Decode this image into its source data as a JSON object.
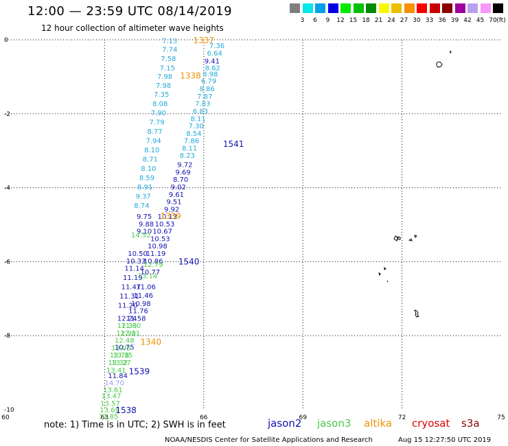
{
  "header": {
    "title": "12:00 — 23:59 UTC 08/14/2019",
    "subtitle": "12 hour collection of altimeter wave heights"
  },
  "legend": {
    "unit": "(ft)",
    "entries": [
      {
        "label": "3",
        "color": "#7f7f7f"
      },
      {
        "label": "6",
        "color": "#00e8e8"
      },
      {
        "label": "9",
        "color": "#00a0e8"
      },
      {
        "label": "12",
        "color": "#0000e0"
      },
      {
        "label": "15",
        "color": "#00e800"
      },
      {
        "label": "18",
        "color": "#00c000"
      },
      {
        "label": "21",
        "color": "#008c00"
      },
      {
        "label": "24",
        "color": "#f8f800"
      },
      {
        "label": "27",
        "color": "#e8c000"
      },
      {
        "label": "30",
        "color": "#f89000"
      },
      {
        "label": "33",
        "color": "#f80000"
      },
      {
        "label": "36",
        "color": "#c80000"
      },
      {
        "label": "39",
        "color": "#880000"
      },
      {
        "label": "42",
        "color": "#a000a0"
      },
      {
        "label": "45",
        "color": "#b8a0f0"
      },
      {
        "label": "70",
        "color": "#f898f8"
      },
      {
        "label": "(ft)",
        "color": "#000000"
      }
    ]
  },
  "axes": {
    "lon": {
      "min": 60,
      "max": 75,
      "ticks": [
        "60",
        "63",
        "66",
        "69",
        "72",
        "75"
      ],
      "tick_values": [
        60,
        63,
        66,
        69,
        72,
        75
      ]
    },
    "lat": {
      "min": -10,
      "max": 0,
      "ticks": [
        "0",
        "-2",
        "-4",
        "-6",
        "-8",
        "-10"
      ],
      "tick_values": [
        0,
        -2,
        -4,
        -6,
        -8,
        -10
      ]
    }
  },
  "colors": {
    "jason2": "#1010b0",
    "jason2_light": "#20a8d8",
    "jason3": "#48c848",
    "altika": "#f09000",
    "cryosat": "#e00000",
    "s3a": "#800000",
    "lavender": "#a098f0"
  },
  "tracks": [
    {
      "sat": "jason2_light",
      "points": [
        {
          "lon": 64.97,
          "lat": -0.02,
          "v": "7.13"
        },
        {
          "lon": 64.97,
          "lat": -0.25,
          "v": "7.74"
        },
        {
          "lon": 64.93,
          "lat": -0.5,
          "v": "7.58"
        },
        {
          "lon": 64.9,
          "lat": -0.75,
          "v": "7.15"
        },
        {
          "lon": 64.82,
          "lat": -0.98,
          "v": "7.98"
        },
        {
          "lon": 64.78,
          "lat": -1.22,
          "v": "7.98"
        },
        {
          "lon": 64.72,
          "lat": -1.47,
          "v": "7.35"
        },
        {
          "lon": 64.68,
          "lat": -1.72,
          "v": "8.08"
        },
        {
          "lon": 64.63,
          "lat": -1.97,
          "v": "7.90"
        },
        {
          "lon": 64.58,
          "lat": -2.22,
          "v": "7.79"
        },
        {
          "lon": 64.52,
          "lat": -2.47,
          "v": "8.77"
        },
        {
          "lon": 64.48,
          "lat": -2.72,
          "v": "7.94"
        },
        {
          "lon": 64.43,
          "lat": -2.97,
          "v": "8.10"
        },
        {
          "lon": 64.38,
          "lat": -3.22,
          "v": "8.71"
        },
        {
          "lon": 64.33,
          "lat": -3.47,
          "v": "8.10"
        },
        {
          "lon": 64.28,
          "lat": -3.72,
          "v": "8.59"
        },
        {
          "lon": 64.22,
          "lat": -3.97,
          "v": "8.91"
        },
        {
          "lon": 64.17,
          "lat": -4.22,
          "v": "9.37"
        },
        {
          "lon": 64.12,
          "lat": -4.47,
          "v": "8.74"
        }
      ]
    },
    {
      "sat": "jason2_light",
      "points": [
        {
          "lon": 66.4,
          "lat": -0.15,
          "v": "7.36"
        },
        {
          "lon": 66.33,
          "lat": -0.35,
          "v": "6.64"
        },
        {
          "lon": 66.27,
          "lat": -0.75,
          "v": "8.62"
        },
        {
          "lon": 66.2,
          "lat": -0.92,
          "v": "8.98"
        },
        {
          "lon": 66.15,
          "lat": -1.1,
          "v": "6.79"
        },
        {
          "lon": 66.1,
          "lat": -1.32,
          "v": "8.86"
        },
        {
          "lon": 66.03,
          "lat": -1.52,
          "v": "7.87"
        },
        {
          "lon": 65.97,
          "lat": -1.72,
          "v": "7.83"
        },
        {
          "lon": 65.9,
          "lat": -1.92,
          "v": "6.83"
        },
        {
          "lon": 65.83,
          "lat": -2.12,
          "v": "8.11"
        },
        {
          "lon": 65.77,
          "lat": -2.32,
          "v": "7.30"
        },
        {
          "lon": 65.7,
          "lat": -2.52,
          "v": "8.54"
        },
        {
          "lon": 65.63,
          "lat": -2.72,
          "v": "7.86"
        },
        {
          "lon": 65.57,
          "lat": -2.92,
          "v": "8.11"
        },
        {
          "lon": 65.5,
          "lat": -3.12,
          "v": "8.23"
        }
      ]
    },
    {
      "sat": "jason2",
      "points": [
        {
          "lon": 66.25,
          "lat": -0.57,
          "v": "9.41"
        },
        {
          "lon": 65.43,
          "lat": -3.37,
          "v": "9.72"
        },
        {
          "lon": 65.37,
          "lat": -3.57,
          "v": "9.69"
        },
        {
          "lon": 65.3,
          "lat": -3.77,
          "v": "8.70"
        },
        {
          "lon": 65.23,
          "lat": -3.97,
          "v": "9.02"
        },
        {
          "lon": 65.17,
          "lat": -4.17,
          "v": "9.61"
        },
        {
          "lon": 65.1,
          "lat": -4.37,
          "v": "9.51"
        },
        {
          "lon": 65.03,
          "lat": -4.57,
          "v": "9.92"
        },
        {
          "lon": 64.2,
          "lat": -4.77,
          "v": "9.75"
        },
        {
          "lon": 64.9,
          "lat": -4.77,
          "v": "10.13"
        },
        {
          "lon": 64.82,
          "lat": -4.97,
          "v": "10.53"
        },
        {
          "lon": 64.26,
          "lat": -4.97,
          "v": "9.88"
        },
        {
          "lon": 64.75,
          "lat": -5.17,
          "v": "10.67"
        },
        {
          "lon": 64.2,
          "lat": -5.17,
          "v": "9.10"
        },
        {
          "lon": 64.68,
          "lat": -5.37,
          "v": "10.53"
        },
        {
          "lon": 64.6,
          "lat": -5.57,
          "v": "10.98"
        },
        {
          "lon": 64.55,
          "lat": -5.77,
          "v": "11.19"
        },
        {
          "lon": 64.0,
          "lat": -5.77,
          "v": "10.50"
        },
        {
          "lon": 64.47,
          "lat": -5.97,
          "v": "10.86"
        },
        {
          "lon": 63.95,
          "lat": -5.97,
          "v": "10.33"
        },
        {
          "lon": 64.38,
          "lat": -6.27,
          "v": "10.77"
        },
        {
          "lon": 63.9,
          "lat": -6.17,
          "v": "11.14"
        },
        {
          "lon": 63.85,
          "lat": -6.42,
          "v": "11.19"
        },
        {
          "lon": 64.25,
          "lat": -6.67,
          "v": "11.06"
        },
        {
          "lon": 63.8,
          "lat": -6.67,
          "v": "11.47"
        },
        {
          "lon": 64.17,
          "lat": -6.9,
          "v": "11.46"
        },
        {
          "lon": 63.75,
          "lat": -6.92,
          "v": "11.31"
        },
        {
          "lon": 64.1,
          "lat": -7.12,
          "v": "10.98"
        },
        {
          "lon": 63.7,
          "lat": -7.17,
          "v": "11.20"
        },
        {
          "lon": 64.02,
          "lat": -7.32,
          "v": "11.76"
        },
        {
          "lon": 63.95,
          "lat": -7.52,
          "v": "11.58"
        },
        {
          "lon": 63.68,
          "lat": -7.52,
          "v": "12.24"
        },
        {
          "lon": 63.4,
          "lat": -9.07,
          "v": "11.84"
        },
        {
          "lon": 63.6,
          "lat": -8.3,
          "v": "10.75"
        }
      ]
    },
    {
      "sat": "jason3",
      "points": [
        {
          "lon": 64.1,
          "lat": -5.27,
          "v": "14.52"
        },
        {
          "lon": 64.3,
          "lat": -6.37,
          "v": "13.14"
        },
        {
          "lon": 64.47,
          "lat": -6.07,
          "v": "12.79"
        },
        {
          "lon": 63.68,
          "lat": -7.72,
          "v": "12.33"
        },
        {
          "lon": 63.8,
          "lat": -7.72,
          "v": "11.60"
        },
        {
          "lon": 63.65,
          "lat": -7.92,
          "v": "12.91"
        },
        {
          "lon": 63.78,
          "lat": -7.92,
          "v": "12.01"
        },
        {
          "lon": 63.6,
          "lat": -8.12,
          "v": "12.48"
        },
        {
          "lon": 63.5,
          "lat": -8.32,
          "v": "13.05"
        },
        {
          "lon": 63.45,
          "lat": -8.52,
          "v": "13.76"
        },
        {
          "lon": 63.55,
          "lat": -8.52,
          "v": "13.35"
        },
        {
          "lon": 63.4,
          "lat": -8.72,
          "v": "13.32"
        },
        {
          "lon": 63.5,
          "lat": -8.72,
          "v": "13.27"
        },
        {
          "lon": 63.35,
          "lat": -8.92,
          "v": "13.41"
        },
        {
          "lon": 63.25,
          "lat": -9.45,
          "v": "13.61"
        },
        {
          "lon": 63.2,
          "lat": -9.62,
          "v": "13.47"
        },
        {
          "lon": 63.17,
          "lat": -9.82,
          "v": "13.57"
        },
        {
          "lon": 63.15,
          "lat": -10.0,
          "v": "13.69"
        },
        {
          "lon": 63.12,
          "lat": -10.18,
          "v": "12.85"
        }
      ]
    },
    {
      "sat": "lavender",
      "points": [
        {
          "lon": 63.3,
          "lat": -9.27,
          "v": "14.70"
        }
      ]
    }
  ],
  "passes": [
    {
      "sat": "altika",
      "lon": 66.0,
      "lat": -0.02,
      "v": "1337"
    },
    {
      "sat": "altika",
      "lon": 65.6,
      "lat": -0.97,
      "v": "1338"
    },
    {
      "sat": "jason2",
      "lon": 66.9,
      "lat": -2.82,
      "v": "1541"
    },
    {
      "sat": "altika",
      "lon": 65.0,
      "lat": -4.77,
      "v": "1339"
    },
    {
      "sat": "jason2",
      "lon": 65.55,
      "lat": -6.0,
      "v": "1540"
    },
    {
      "sat": "altika",
      "lon": 64.4,
      "lat": -8.17,
      "v": "1340"
    },
    {
      "sat": "jason2",
      "lon": 64.05,
      "lat": -8.97,
      "v": "1539"
    },
    {
      "sat": "jason2",
      "lon": 63.65,
      "lat": -10.02,
      "v": "1538"
    }
  ],
  "footer": {
    "note": "note: 1) Time is in UTC; 2) SWH is in feet",
    "satellites": [
      {
        "label": "jason2",
        "color": "#1010b0"
      },
      {
        "label": "jason3",
        "color": "#48c848"
      },
      {
        "label": "altika",
        "color": "#f09000"
      },
      {
        "label": "cryosat",
        "color": "#e00000"
      },
      {
        "label": "s3a",
        "color": "#800000"
      }
    ],
    "credit": "NOAA/NESDIS Center for Satellite Applications and Research",
    "timestamp": "Aug 15 12:27:50 UTC 2019"
  }
}
